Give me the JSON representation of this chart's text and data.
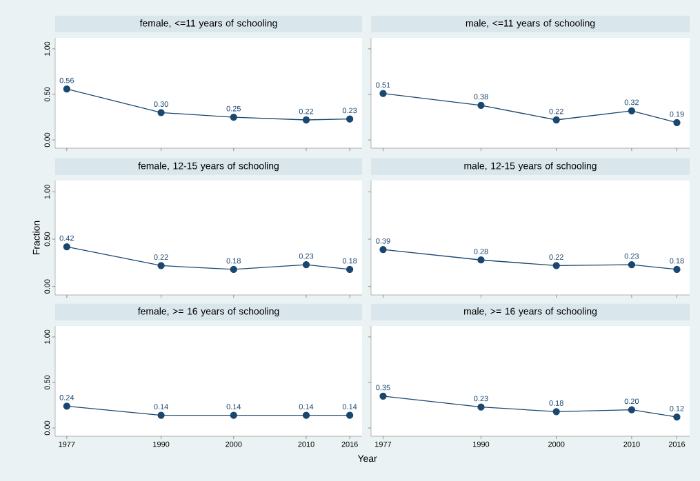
{
  "chart_data": [
    {
      "type": "line",
      "title": "female, <=11 years of schooling",
      "x": [
        1977,
        1990,
        2000,
        2010,
        2016
      ],
      "values": [
        0.56,
        0.3,
        0.25,
        0.22,
        0.23
      ],
      "value_labels": [
        "0.56",
        "0.30",
        "0.25",
        "0.22",
        "0.23"
      ],
      "color": "#1a476f",
      "marker": "circle",
      "line_style": "solid",
      "xlim": [
        1975.4,
        2017.7
      ],
      "ylim": [
        -0.09,
        1.12
      ],
      "xticks": [
        {
          "value": 1977,
          "label": null
        },
        {
          "value": 1990,
          "label": null
        },
        {
          "value": 2000,
          "label": null
        },
        {
          "value": 2010,
          "label": null
        },
        {
          "value": 2016,
          "label": null
        }
      ],
      "yticks": [
        {
          "value": 0,
          "label": "0.00"
        },
        {
          "value": 0.5,
          "label": "0.50"
        },
        {
          "value": 1,
          "label": "1.00"
        }
      ],
      "tick_labels": "y"
    },
    {
      "type": "line",
      "title": "male, <=11 years of schooling",
      "x": [
        1977,
        1990,
        2000,
        2010,
        2016
      ],
      "values": [
        0.51,
        0.38,
        0.22,
        0.32,
        0.19
      ],
      "value_labels": [
        "0.51",
        "0.38",
        "0.22",
        "0.32",
        "0.19"
      ],
      "color": "#1a476f",
      "marker": "circle",
      "line_style": "solid",
      "xlim": [
        1975.4,
        2017.7
      ],
      "ylim": [
        -0.09,
        1.12
      ],
      "xticks": [
        {
          "value": 1977,
          "label": null
        },
        {
          "value": 1990,
          "label": null
        },
        {
          "value": 2000,
          "label": null
        },
        {
          "value": 2010,
          "label": null
        },
        {
          "value": 2016,
          "label": null
        }
      ],
      "yticks": [
        {
          "value": 0,
          "label": null
        },
        {
          "value": 0.5,
          "label": null
        },
        {
          "value": 1,
          "label": null
        }
      ],
      "tick_labels": false
    },
    {
      "type": "line",
      "title": "female, 12-15 years of schooling",
      "ylabel": "Fraction",
      "x": [
        1977,
        1990,
        2000,
        2010,
        2016
      ],
      "values": [
        0.42,
        0.22,
        0.18,
        0.23,
        0.18
      ],
      "value_labels": [
        "0.42",
        "0.22",
        "0.18",
        "0.23",
        "0.18"
      ],
      "color": "#1a476f",
      "marker": "circle",
      "line_style": "solid",
      "xlim": [
        1975.4,
        2017.7
      ],
      "ylim": [
        -0.09,
        1.12
      ],
      "xticks": [
        {
          "value": 1977,
          "label": null
        },
        {
          "value": 1990,
          "label": null
        },
        {
          "value": 2000,
          "label": null
        },
        {
          "value": 2010,
          "label": null
        },
        {
          "value": 2016,
          "label": null
        }
      ],
      "yticks": [
        {
          "value": 0,
          "label": "0.00"
        },
        {
          "value": 0.5,
          "label": "0.50"
        },
        {
          "value": 1,
          "label": "1.00"
        }
      ],
      "tick_labels": "y"
    },
    {
      "type": "line",
      "title": "male, 12-15 years of schooling",
      "x": [
        1977,
        1990,
        2000,
        2010,
        2016
      ],
      "values": [
        0.39,
        0.28,
        0.22,
        0.23,
        0.18
      ],
      "value_labels": [
        "0.39",
        "0.28",
        "0.22",
        "0.23",
        "0.18"
      ],
      "color": "#1a476f",
      "marker": "circle",
      "line_style": "solid",
      "xlim": [
        1975.4,
        2017.7
      ],
      "ylim": [
        -0.09,
        1.12
      ],
      "xticks": [
        {
          "value": 1977,
          "label": null
        },
        {
          "value": 1990,
          "label": null
        },
        {
          "value": 2000,
          "label": null
        },
        {
          "value": 2010,
          "label": null
        },
        {
          "value": 2016,
          "label": null
        }
      ],
      "yticks": [
        {
          "value": 0,
          "label": null
        },
        {
          "value": 0.5,
          "label": null
        },
        {
          "value": 1,
          "label": null
        }
      ],
      "tick_labels": false
    },
    {
      "type": "line",
      "title": "female, >= 16 years of schooling",
      "xlabel": "Year",
      "x": [
        1977,
        1990,
        2000,
        2010,
        2016
      ],
      "values": [
        0.24,
        0.14,
        0.14,
        0.14,
        0.14
      ],
      "value_labels": [
        "0.24",
        "0.14",
        "0.14",
        "0.14",
        "0.14"
      ],
      "color": "#1a476f",
      "marker": "circle",
      "line_style": "solid",
      "xlim": [
        1975.4,
        2017.7
      ],
      "ylim": [
        -0.09,
        1.12
      ],
      "xticks": [
        1977,
        1990,
        2000,
        2010,
        2016
      ],
      "yticks": [
        {
          "value": 0,
          "label": "0.00"
        },
        {
          "value": 0.5,
          "label": "0.50"
        },
        {
          "value": 1,
          "label": "1.00"
        }
      ]
    },
    {
      "type": "line",
      "title": "male, >= 16 years of schooling",
      "x": [
        1977,
        1990,
        2000,
        2010,
        2016
      ],
      "values": [
        0.35,
        0.23,
        0.18,
        0.2,
        0.12
      ],
      "value_labels": [
        "0.35",
        "0.23",
        "0.18",
        "0.20",
        "0.12"
      ],
      "color": "#1a476f",
      "marker": "circle",
      "line_style": "solid",
      "xlim": [
        1975.4,
        2017.7
      ],
      "ylim": [
        -0.09,
        1.12
      ],
      "xticks": [
        1977,
        1990,
        2000,
        2010,
        2016
      ],
      "yticks": [
        {
          "value": 0,
          "label": null
        },
        {
          "value": 0.5,
          "label": null
        },
        {
          "value": 1,
          "label": null
        }
      ],
      "tick_labels": "x"
    }
  ]
}
